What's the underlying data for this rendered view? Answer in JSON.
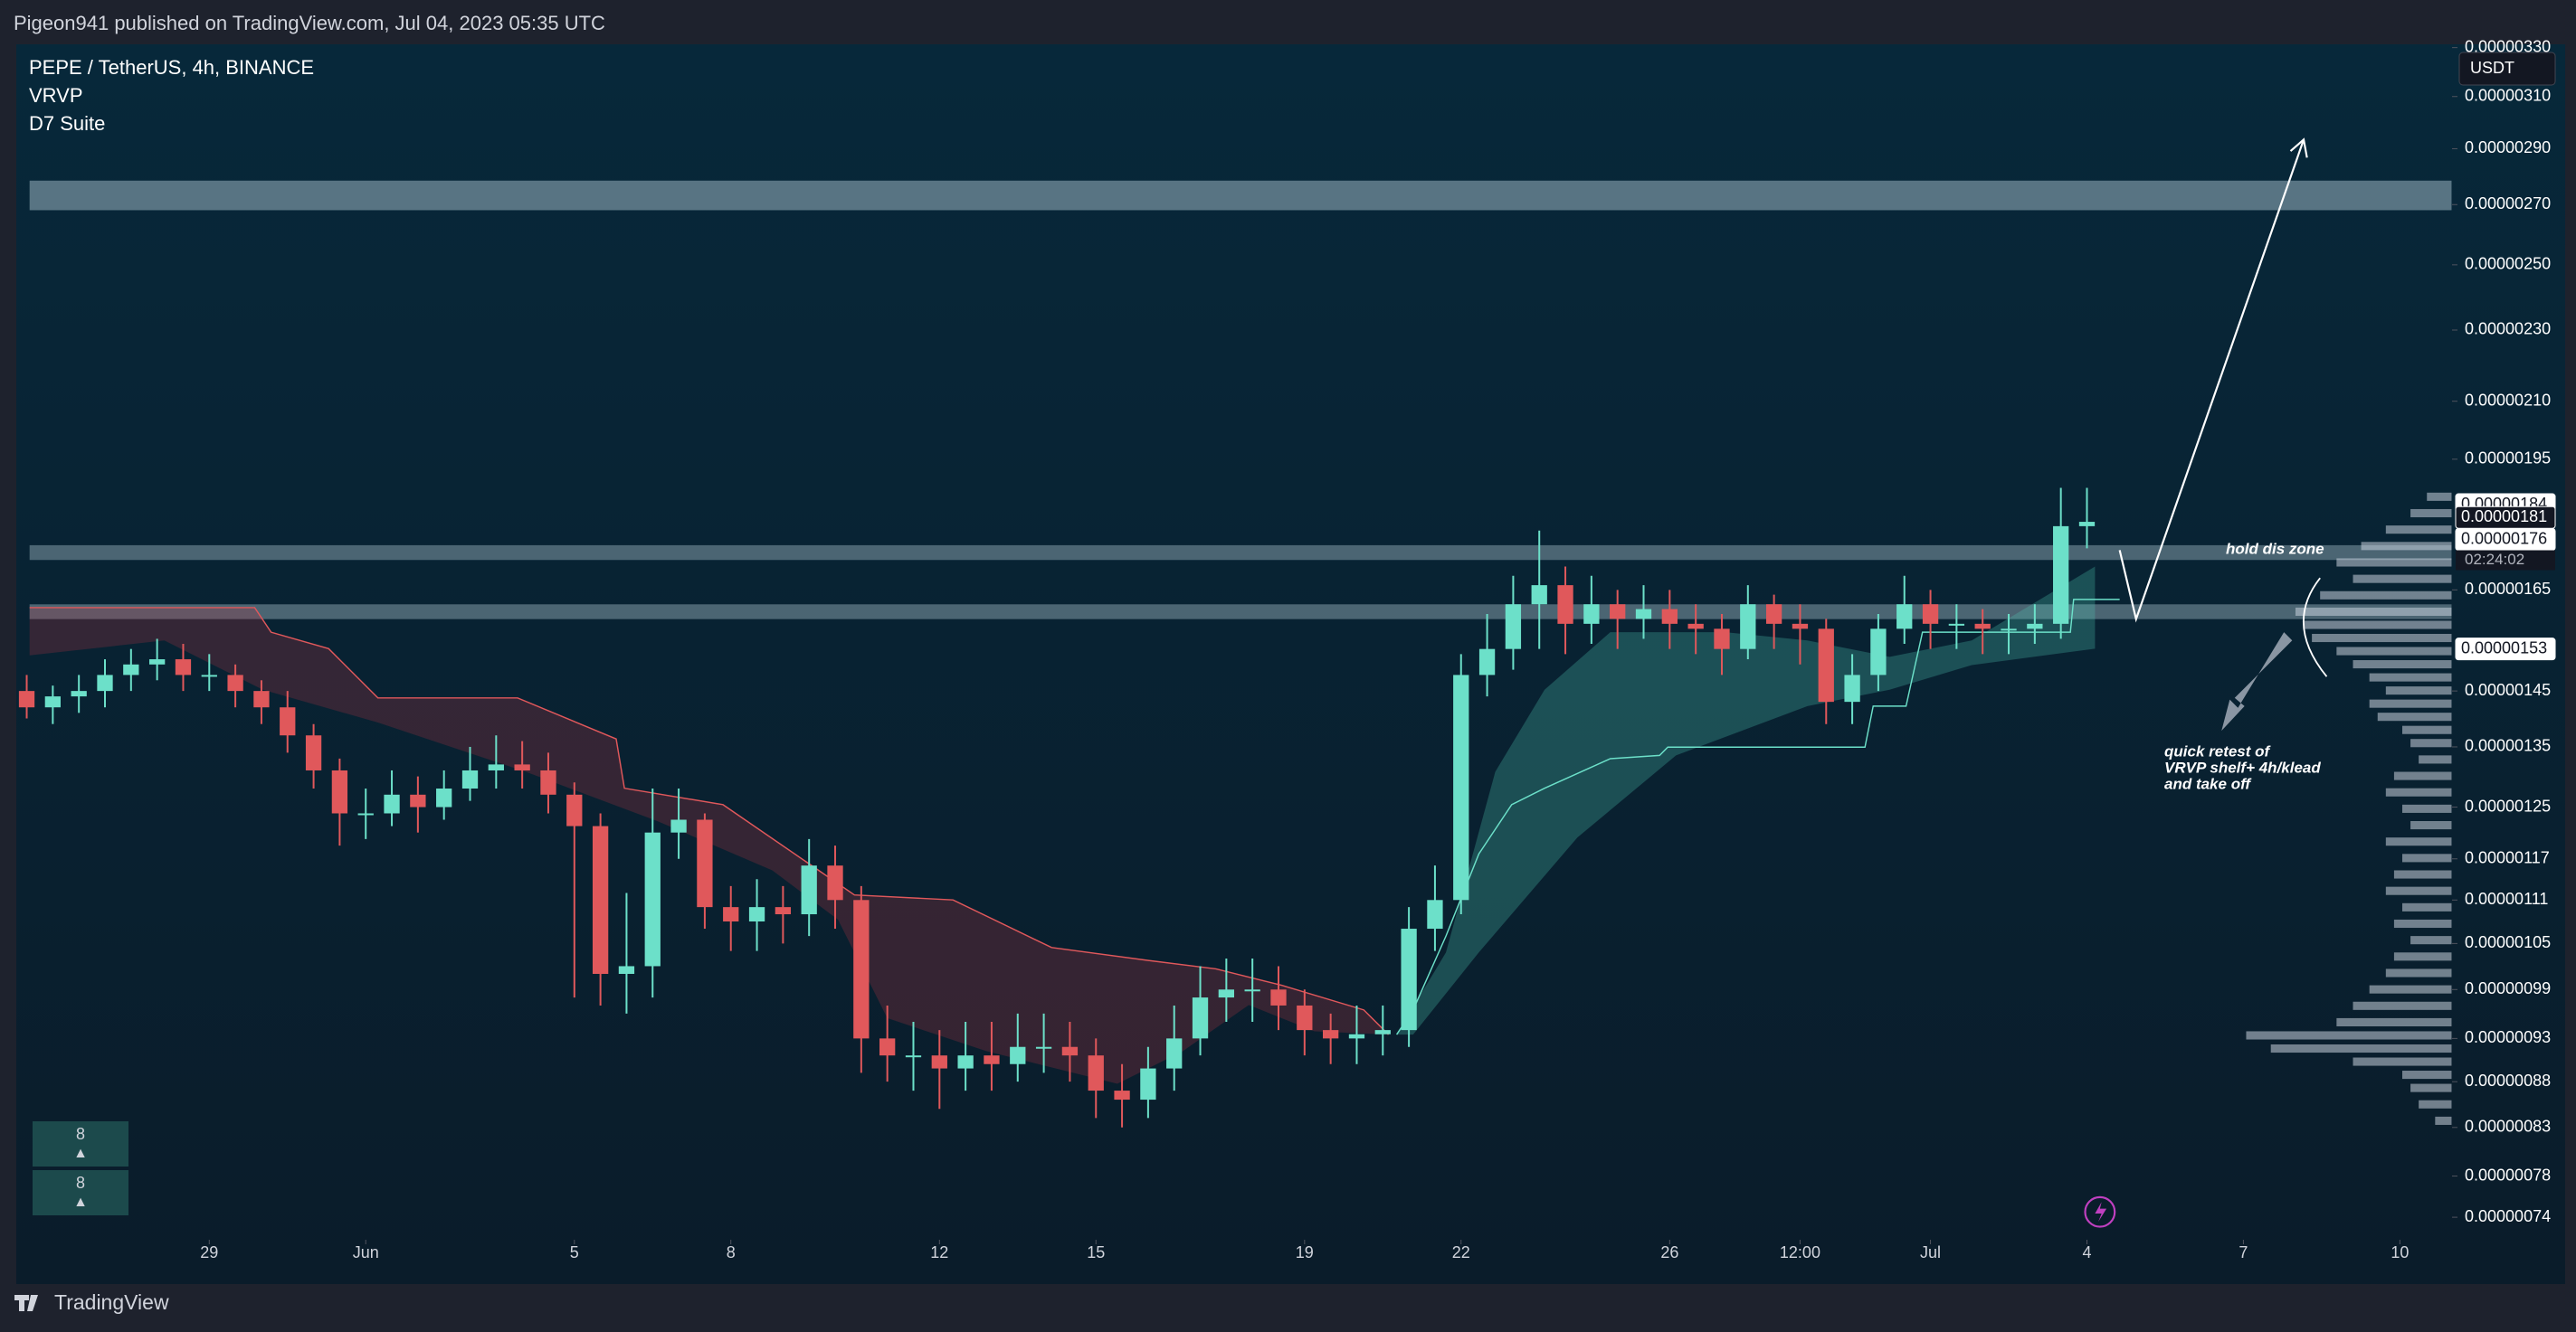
{
  "header": {
    "byline": "Pigeon941 published on TradingView.com, Jul 04, 2023 05:35 UTC"
  },
  "chart_data": {
    "type": "candlestick",
    "title": "PEPE / TetherUS, 4h, BINANCE",
    "indicators": [
      "VRVP",
      "D7 Suite"
    ],
    "currency": "USDT",
    "up_color": "#6ce0c9",
    "down_color": "#e0585b",
    "open": [
      1.45e-06,
      1.42e-06,
      1.44e-06,
      1.45e-06,
      1.48e-06,
      1.5e-06,
      1.51e-06,
      1.48e-06,
      1.48e-06,
      1.45e-06,
      1.42e-06,
      1.37e-06,
      1.31e-06,
      1.24e-06,
      1.24e-06,
      1.27e-06,
      1.25e-06,
      1.28e-06,
      1.31e-06,
      1.32e-06,
      1.31e-06,
      1.27e-06,
      1.22e-06,
      1.01e-06,
      1.02e-06,
      1.21e-06,
      1.23e-06,
      1.1e-06,
      1.08e-06,
      1.1e-06,
      1.09e-06,
      1.16e-06,
      1.11e-06,
      9.3e-07,
      9.1e-07,
      9.1e-07,
      8.95e-07,
      9.1e-07,
      9e-07,
      9.2e-07,
      9.2e-07,
      9.1e-07,
      8.7e-07,
      8.6e-07,
      8.95e-07,
      9.3e-07,
      9.8e-07,
      9.9e-07,
      9.9e-07,
      9.7e-07,
      9.4e-07,
      9.3e-07,
      9.35e-07,
      9.4e-07,
      1.07e-06,
      1.11e-06,
      1.48e-06,
      1.53e-06,
      1.62e-06,
      1.66e-06,
      1.58e-06,
      1.62e-06,
      1.59e-06,
      1.61e-06,
      1.58e-06,
      1.57e-06,
      1.53e-06,
      1.62e-06,
      1.58e-06,
      1.57e-06,
      1.43e-06,
      1.48e-06,
      1.57e-06,
      1.62e-06,
      1.58e-06,
      1.58e-06,
      1.57e-06,
      1.57e-06,
      1.58e-06,
      1.79e-06
    ],
    "high": [
      1.48e-06,
      1.46e-06,
      1.48e-06,
      1.51e-06,
      1.53e-06,
      1.55e-06,
      1.54e-06,
      1.52e-06,
      1.5e-06,
      1.47e-06,
      1.45e-06,
      1.39e-06,
      1.33e-06,
      1.28e-06,
      1.31e-06,
      1.3e-06,
      1.31e-06,
      1.35e-06,
      1.37e-06,
      1.36e-06,
      1.34e-06,
      1.29e-06,
      1.24e-06,
      1.12e-06,
      1.28e-06,
      1.28e-06,
      1.24e-06,
      1.13e-06,
      1.14e-06,
      1.13e-06,
      1.2e-06,
      1.19e-06,
      1.13e-06,
      9.7e-07,
      9.5e-07,
      9.4e-07,
      9.5e-07,
      9.5e-07,
      9.6e-07,
      9.6e-07,
      9.5e-07,
      9.3e-07,
      9e-07,
      9.2e-07,
      9.7e-07,
      1.02e-06,
      1.03e-06,
      1.03e-06,
      1.02e-06,
      9.9e-07,
      9.6e-07,
      9.7e-07,
      9.7e-07,
      1.1e-06,
      1.16e-06,
      1.52e-06,
      1.6e-06,
      1.68e-06,
      1.78e-06,
      1.7e-06,
      1.68e-06,
      1.65e-06,
      1.66e-06,
      1.65e-06,
      1.62e-06,
      1.6e-06,
      1.66e-06,
      1.64e-06,
      1.62e-06,
      1.59e-06,
      1.52e-06,
      1.6e-06,
      1.68e-06,
      1.65e-06,
      1.62e-06,
      1.61e-06,
      1.6e-06,
      1.62e-06,
      1.88e-06,
      1.88e-06
    ],
    "low": [
      1.4e-06,
      1.39e-06,
      1.41e-06,
      1.42e-06,
      1.45e-06,
      1.47e-06,
      1.45e-06,
      1.45e-06,
      1.42e-06,
      1.39e-06,
      1.34e-06,
      1.28e-06,
      1.19e-06,
      1.2e-06,
      1.22e-06,
      1.21e-06,
      1.23e-06,
      1.26e-06,
      1.28e-06,
      1.28e-06,
      1.24e-06,
      9.8e-07,
      9.7e-07,
      9.6e-07,
      9.8e-07,
      1.17e-06,
      1.07e-06,
      1.04e-06,
      1.04e-06,
      1.05e-06,
      1.06e-06,
      1.07e-06,
      8.9e-07,
      8.8e-07,
      8.7e-07,
      8.5e-07,
      8.7e-07,
      8.7e-07,
      8.8e-07,
      8.9e-07,
      8.8e-07,
      8.4e-07,
      8.3e-07,
      8.4e-07,
      8.7e-07,
      9.1e-07,
      9.5e-07,
      9.5e-07,
      9.4e-07,
      9.1e-07,
      9e-07,
      9e-07,
      9.1e-07,
      9.2e-07,
      1.04e-06,
      1.09e-06,
      1.44e-06,
      1.49e-06,
      1.53e-06,
      1.52e-06,
      1.54e-06,
      1.53e-06,
      1.55e-06,
      1.53e-06,
      1.52e-06,
      1.48e-06,
      1.51e-06,
      1.53e-06,
      1.5e-06,
      1.39e-06,
      1.39e-06,
      1.45e-06,
      1.54e-06,
      1.53e-06,
      1.53e-06,
      1.52e-06,
      1.52e-06,
      1.54e-06,
      1.55e-06,
      1.74e-06
    ],
    "close": [
      1.42e-06,
      1.44e-06,
      1.45e-06,
      1.48e-06,
      1.5e-06,
      1.51e-06,
      1.48e-06,
      1.48e-06,
      1.45e-06,
      1.42e-06,
      1.37e-06,
      1.31e-06,
      1.24e-06,
      1.24e-06,
      1.27e-06,
      1.25e-06,
      1.28e-06,
      1.31e-06,
      1.32e-06,
      1.31e-06,
      1.27e-06,
      1.22e-06,
      1.01e-06,
      1.02e-06,
      1.21e-06,
      1.23e-06,
      1.1e-06,
      1.08e-06,
      1.1e-06,
      1.09e-06,
      1.16e-06,
      1.11e-06,
      9.3e-07,
      9.1e-07,
      9.1e-07,
      8.95e-07,
      9.1e-07,
      9e-07,
      9.2e-07,
      9.2e-07,
      9.1e-07,
      8.7e-07,
      8.6e-07,
      8.95e-07,
      9.3e-07,
      9.8e-07,
      9.9e-07,
      9.9e-07,
      9.7e-07,
      9.4e-07,
      9.3e-07,
      9.35e-07,
      9.4e-07,
      1.07e-06,
      1.11e-06,
      1.48e-06,
      1.53e-06,
      1.62e-06,
      1.66e-06,
      1.58e-06,
      1.62e-06,
      1.59e-06,
      1.61e-06,
      1.58e-06,
      1.57e-06,
      1.53e-06,
      1.62e-06,
      1.58e-06,
      1.57e-06,
      1.43e-06,
      1.48e-06,
      1.57e-06,
      1.62e-06,
      1.58e-06,
      1.58e-06,
      1.57e-06,
      1.57e-06,
      1.58e-06,
      1.79e-06,
      1.8e-06
    ],
    "xlim": [
      -0.4,
      93
    ],
    "xticks": [
      {
        "value": 7,
        "label": "29"
      },
      {
        "value": 13,
        "label": "Jun"
      },
      {
        "value": 21,
        "label": "5"
      },
      {
        "value": 27,
        "label": "8"
      },
      {
        "value": 35,
        "label": "12"
      },
      {
        "value": 41,
        "label": "15"
      },
      {
        "value": 49,
        "label": "19"
      },
      {
        "value": 55,
        "label": "22"
      },
      {
        "value": 63,
        "label": "26"
      },
      {
        "value": 68,
        "label": "12:00"
      },
      {
        "value": 73,
        "label": "Jul"
      },
      {
        "value": 79,
        "label": "4"
      },
      {
        "value": 85,
        "label": "7"
      },
      {
        "value": 91,
        "label": "10"
      }
    ],
    "ylim": [
      7.19e-07,
      3.314e-06
    ],
    "log_y": true,
    "yticks": [
      {
        "value": 3.3e-06,
        "label": "0.00000330"
      },
      {
        "value": 3.1e-06,
        "label": "0.00000310"
      },
      {
        "value": 2.9e-06,
        "label": "0.00000290"
      },
      {
        "value": 2.7e-06,
        "label": "0.00000270"
      },
      {
        "value": 2.5e-06,
        "label": "0.00000250"
      },
      {
        "value": 2.3e-06,
        "label": "0.00000230"
      },
      {
        "value": 2.1e-06,
        "label": "0.00000210"
      },
      {
        "value": 1.95e-06,
        "label": "0.00000195"
      },
      {
        "value": 1.65e-06,
        "label": "0.00000165"
      },
      {
        "value": 1.45e-06,
        "label": "0.00000145"
      },
      {
        "value": 1.35e-06,
        "label": "0.00000135"
      },
      {
        "value": 1.25e-06,
        "label": "0.00000125"
      },
      {
        "value": 1.17e-06,
        "label": "0.00000117"
      },
      {
        "value": 1.11e-06,
        "label": "0.00000111"
      },
      {
        "value": 1.05e-06,
        "label": "0.00000105"
      },
      {
        "value": 9.9e-07,
        "label": "0.00000099"
      },
      {
        "value": 9.3e-07,
        "label": "0.00000093"
      },
      {
        "value": 8.8e-07,
        "label": "0.00000088"
      },
      {
        "value": 8.3e-07,
        "label": "0.00000083"
      },
      {
        "value": 7.8e-07,
        "label": "0.00000078"
      },
      {
        "value": 7.4e-07,
        "label": "0.00000074"
      }
    ],
    "price_labels": [
      {
        "value": 1.84e-06,
        "label": "0.00000184"
      },
      {
        "value": 1.81e-06,
        "label": "0.00000181"
      },
      {
        "value": 1.76e-06,
        "label": "0.00000176"
      },
      {
        "value": 1.53e-06,
        "label": "0.00000153"
      }
    ],
    "countdown": "02:24:02",
    "annotations": [
      "hold dis zone",
      "quick retest of",
      "VRVP shelf+ 4h/klead",
      "and take off"
    ]
  },
  "badges": [
    {
      "value": 8,
      "symbol": "▲"
    },
    {
      "value": 8,
      "symbol": "▲"
    }
  ],
  "footer": {
    "brand": "TradingView"
  }
}
